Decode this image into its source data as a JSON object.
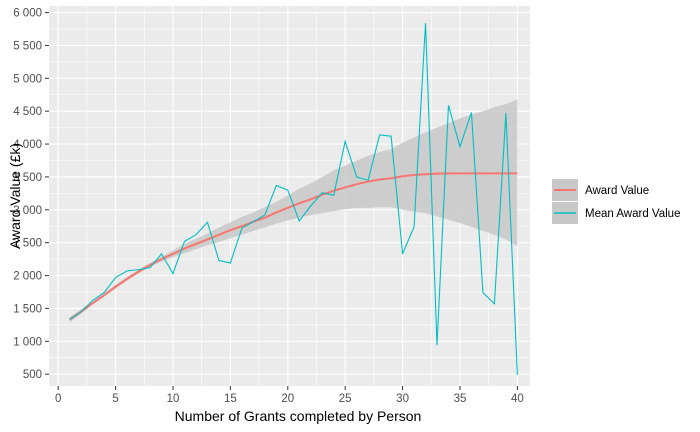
{
  "chart_data": {
    "type": "line",
    "title": "",
    "xlabel": "Number of Grants completed by Person",
    "ylabel": "Award Value (£k)",
    "xlim": [
      -0.8,
      41.1
    ],
    "ylim": [
      320,
      6100
    ],
    "x_ticks": [
      0,
      5,
      10,
      15,
      20,
      25,
      30,
      35,
      40
    ],
    "x_tick_labels": [
      "0",
      "5",
      "10",
      "15",
      "20",
      "25",
      "30",
      "35",
      "40"
    ],
    "y_ticks": [
      500,
      1000,
      1500,
      2000,
      2500,
      3000,
      3500,
      4000,
      4500,
      5000,
      5500,
      6000
    ],
    "y_tick_labels": [
      "500",
      "1 000",
      "1 500",
      "2 000",
      "2 500",
      "3 000",
      "3 500",
      "4 000",
      "4 500",
      "5 000",
      "5 500",
      "6 000"
    ],
    "grid": true,
    "legend_position": "right",
    "colors": {
      "panel": "#ebebeb",
      "grid": "#ffffff",
      "ribbon": "#c8c8c8",
      "smooth": "#f8766d",
      "mean": "#00bfc4"
    },
    "series": [
      {
        "name": "Award Value",
        "kind": "smooth",
        "x": [
          1,
          2,
          3,
          4,
          5,
          6,
          7,
          8,
          9,
          10,
          11,
          12,
          13,
          14,
          15,
          16,
          17,
          18,
          19,
          20,
          21,
          22,
          23,
          24,
          25,
          26,
          27,
          28,
          29,
          30,
          31,
          32,
          33,
          34,
          35,
          36,
          37,
          38,
          39,
          40
        ],
        "y": [
          1330,
          1450,
          1580,
          1700,
          1830,
          1950,
          2060,
          2160,
          2250,
          2330,
          2410,
          2480,
          2550,
          2620,
          2690,
          2750,
          2820,
          2880,
          2960,
          3030,
          3100,
          3160,
          3230,
          3290,
          3340,
          3390,
          3430,
          3460,
          3480,
          3510,
          3530,
          3540,
          3550,
          3555,
          3555,
          3555,
          3555,
          3555,
          3555,
          3555
        ],
        "ci_lower": [
          1290,
          1420,
          1560,
          1680,
          1800,
          1920,
          2030,
          2130,
          2210,
          2280,
          2340,
          2400,
          2460,
          2510,
          2570,
          2620,
          2680,
          2730,
          2790,
          2840,
          2880,
          2920,
          2950,
          2980,
          3010,
          3030,
          3030,
          3040,
          3040,
          3000,
          2970,
          2950,
          2900,
          2850,
          2800,
          2740,
          2680,
          2620,
          2550,
          2450
        ],
        "ci_upper": [
          1370,
          1490,
          1600,
          1730,
          1860,
          1980,
          2090,
          2190,
          2290,
          2380,
          2480,
          2560,
          2640,
          2730,
          2810,
          2890,
          2960,
          3040,
          3120,
          3220,
          3320,
          3400,
          3500,
          3600,
          3670,
          3750,
          3820,
          3880,
          3920,
          4020,
          4100,
          4180,
          4250,
          4320,
          4390,
          4450,
          4500,
          4560,
          4610,
          4680
        ]
      },
      {
        "name": "Mean Award Value",
        "kind": "line",
        "x": [
          1,
          2,
          3,
          4,
          5,
          6,
          7,
          8,
          9,
          10,
          11,
          12,
          13,
          14,
          15,
          16,
          17,
          18,
          19,
          20,
          21,
          22,
          23,
          24,
          25,
          26,
          27,
          28,
          29,
          30,
          31,
          32,
          33,
          34,
          35,
          36,
          37,
          38,
          39,
          40
        ],
        "y": [
          1330,
          1450,
          1620,
          1740,
          1970,
          2070,
          2090,
          2120,
          2330,
          2030,
          2520,
          2620,
          2810,
          2230,
          2190,
          2720,
          2820,
          2920,
          3370,
          3300,
          2830,
          3060,
          3260,
          3220,
          4040,
          3500,
          3450,
          4140,
          4120,
          2330,
          2740,
          5840,
          940,
          4590,
          3960,
          4480,
          1740,
          1570,
          4470,
          490
        ]
      }
    ]
  }
}
